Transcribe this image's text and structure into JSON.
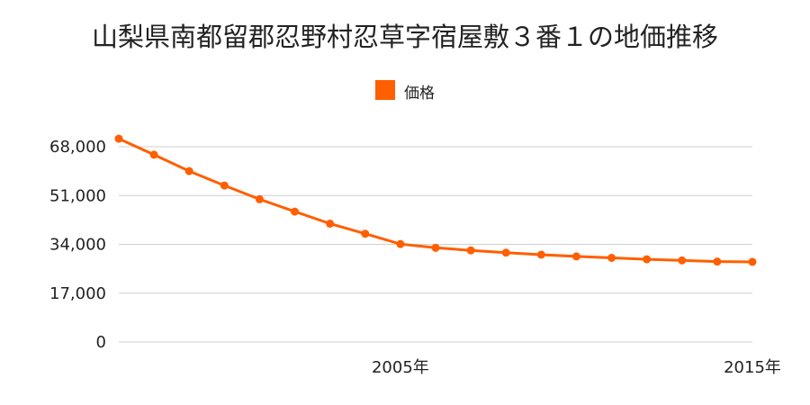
{
  "chart_data": {
    "type": "line",
    "title": "山梨県南都留郡忍野村忍草字宿屋敷３番１の地価推移",
    "xlabel": "",
    "ylabel": "",
    "x": [
      1997,
      1998,
      1999,
      2000,
      2001,
      2002,
      2003,
      2004,
      2005,
      2006,
      2007,
      2008,
      2009,
      2010,
      2011,
      2012,
      2013,
      2014,
      2015
    ],
    "x_tick_labels": [
      {
        "x": 2005,
        "label": "2005年"
      },
      {
        "x": 2015,
        "label": "2015年"
      }
    ],
    "series": [
      {
        "name": "価格",
        "color": "#FF5F00",
        "values": [
          70800,
          65200,
          59500,
          54500,
          49700,
          45400,
          41200,
          37700,
          34100,
          32800,
          31900,
          31100,
          30400,
          29800,
          29300,
          28800,
          28400,
          28000,
          27900
        ]
      }
    ],
    "ylim": [
      0,
      68000
    ],
    "y_ticks": [
      0,
      17000,
      34000,
      51000,
      68000
    ],
    "y_tick_labels": [
      "0",
      "17,000",
      "34,000",
      "51,000",
      "68,000"
    ],
    "grid": true,
    "legend_position": "top"
  }
}
